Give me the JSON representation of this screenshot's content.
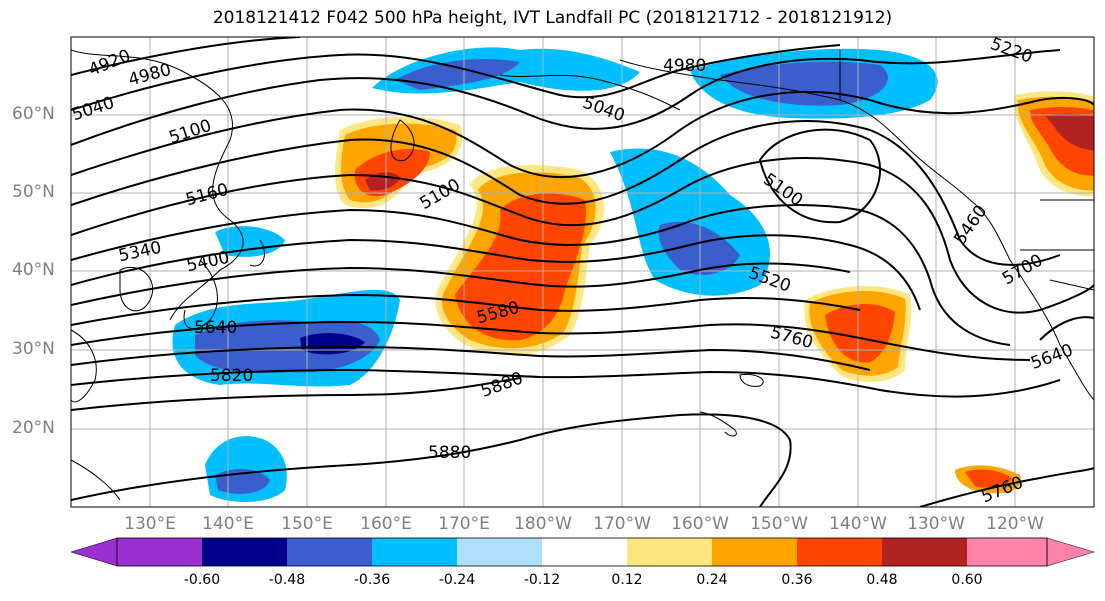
{
  "title": "2018121412 F042 500 hPa height, IVT Landfall PC (2018121712 - 2018121912)",
  "lat_labels": [
    "60°N",
    "50°N",
    "40°N",
    "30°N",
    "20°N"
  ],
  "lon_labels": [
    "130°E",
    "140°E",
    "150°E",
    "160°E",
    "170°E",
    "180°W",
    "170°W",
    "160°W",
    "150°W",
    "140°W",
    "130°W",
    "120°W"
  ],
  "colorbar": {
    "ticks": [
      "-0.60",
      "-0.48",
      "-0.36",
      "-0.24",
      "-0.12",
      "0.12",
      "0.24",
      "0.36",
      "0.48",
      "0.60"
    ],
    "colors": [
      "#9b30d0",
      "#00008b",
      "#3a5fcd",
      "#00bfff",
      "#b0e0ff",
      "#ffffff",
      "#ffe680",
      "#ffa500",
      "#ff4500",
      "#b22222",
      "#ff82ab"
    ]
  },
  "contour_labels": [
    "4920",
    "4980",
    "5040",
    "5100",
    "5160",
    "5340",
    "5400",
    "5640",
    "5820",
    "5880",
    "5580",
    "5100",
    "5040",
    "4980",
    "5220",
    "5100",
    "5520",
    "5760",
    "5460",
    "5700",
    "5640",
    "5880",
    "5760"
  ],
  "map_colors": {
    "land_line": "#000000",
    "grid": "#b0b0b0",
    "contour": "#000000"
  }
}
